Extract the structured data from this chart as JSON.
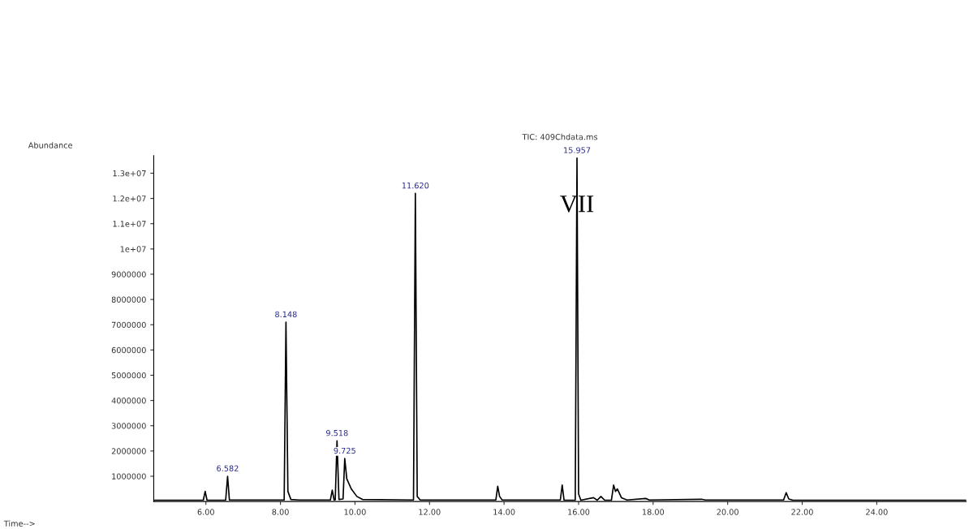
{
  "chart_data": {
    "type": "line",
    "title": "TIC: 409Chdata.ms",
    "series": [
      {
        "color": "#000000",
        "x": [
          4.6,
          5.93,
          5.98,
          6.03,
          6.53,
          6.582,
          6.63,
          8.1,
          8.148,
          8.2,
          8.28,
          8.5,
          9.34,
          9.39,
          9.44,
          9.47,
          9.518,
          9.57,
          9.68,
          9.725,
          9.78,
          9.9,
          10.05,
          10.2,
          11.57,
          11.62,
          11.67,
          11.75,
          13.78,
          13.83,
          13.88,
          13.95,
          15.51,
          15.56,
          15.61,
          15.91,
          15.957,
          16.0,
          16.06,
          16.4,
          16.5,
          16.6,
          16.7,
          16.88,
          16.94,
          16.99,
          17.04,
          17.15,
          17.3,
          17.8,
          17.9,
          19.3,
          19.4,
          21.5,
          21.57,
          21.64,
          21.75,
          26.4
        ],
        "values": [
          50000,
          50000,
          400000,
          50000,
          50000,
          1000000,
          60000,
          60000,
          7100000,
          400000,
          80000,
          60000,
          60000,
          450000,
          60000,
          70000,
          2400000,
          80000,
          100000,
          1700000,
          900000,
          500000,
          200000,
          80000,
          60000,
          12200000,
          200000,
          60000,
          60000,
          600000,
          200000,
          60000,
          60000,
          650000,
          50000,
          50000,
          13600000,
          300000,
          50000,
          150000,
          50000,
          200000,
          50000,
          50000,
          650000,
          400000,
          500000,
          150000,
          60000,
          120000,
          60000,
          90000,
          60000,
          60000,
          350000,
          100000,
          50000,
          50000
        ]
      }
    ],
    "xlim": [
      4.6,
      26.4
    ],
    "xticks": [
      {
        "value": 6,
        "label": "6.00"
      },
      {
        "value": 8,
        "label": "8.00"
      },
      {
        "value": 10,
        "label": "10.00"
      },
      {
        "value": 12,
        "label": "12.00"
      },
      {
        "value": 14,
        "label": "14.00"
      },
      {
        "value": 16,
        "label": "16.00"
      },
      {
        "value": 18,
        "label": "18.00"
      },
      {
        "value": 20,
        "label": "20.00"
      },
      {
        "value": 22,
        "label": "22.00"
      },
      {
        "value": 24,
        "label": "24.00"
      }
    ],
    "ylim": [
      0,
      13700000
    ],
    "yticks": [
      1000000,
      2000000,
      3000000,
      4000000,
      5000000,
      6000000,
      7000000,
      8000000,
      9000000,
      {
        "value": 10000000,
        "label": "1e+07"
      },
      {
        "value": 11000000,
        "label": "1.1e+07"
      },
      {
        "value": 12000000,
        "label": "1.2e+07"
      },
      {
        "value": 13000000,
        "label": "1.3e+07"
      }
    ],
    "grid": false,
    "annotations": [
      "Abundance",
      "Time-->",
      {
        "text": "6.582",
        "x": 6.582,
        "y": 1000000
      },
      {
        "text": "8.148",
        "x": 8.148,
        "y": 7100000
      },
      {
        "text": "9.518",
        "x": 9.518,
        "y": 2400000
      },
      {
        "text": "9.725",
        "x": 9.725,
        "y": 1700000
      },
      {
        "text": "11.620",
        "x": 11.62,
        "y": 12200000
      },
      {
        "text": "15.957",
        "x": 15.957,
        "y": 13600000
      },
      {
        "text": "VII",
        "x": 15.957,
        "y": 11700000
      }
    ]
  }
}
